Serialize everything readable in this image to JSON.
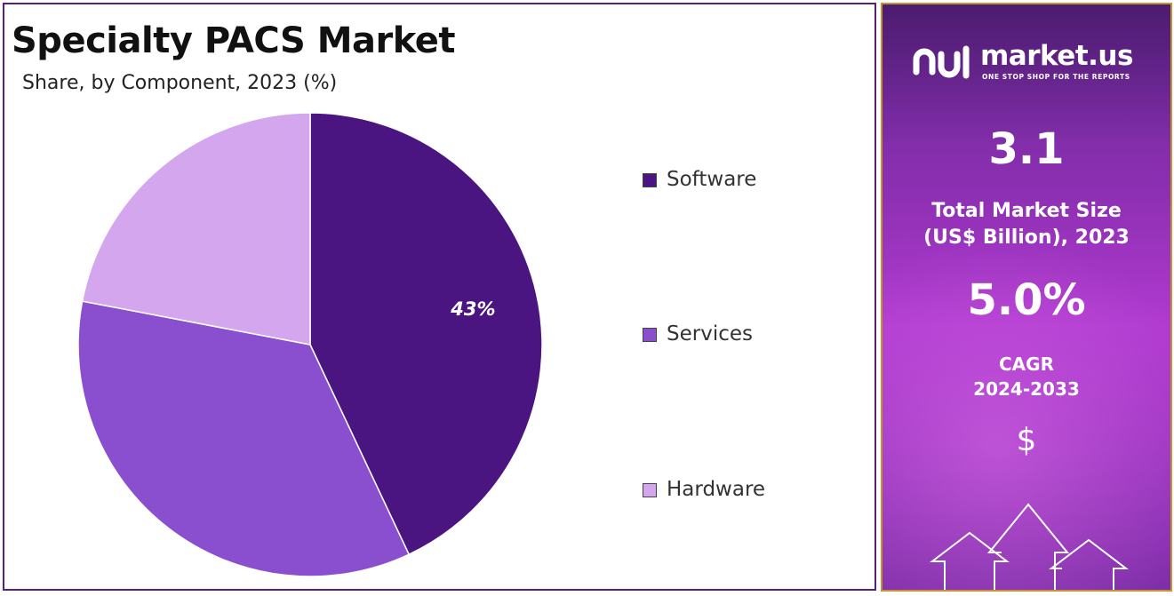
{
  "chart_data": {
    "type": "pie",
    "title": "Specialty PACS Market",
    "subtitle": "Share, by Component, 2023 (%)",
    "categories": [
      "Software",
      "Services",
      "Hardware"
    ],
    "values": [
      43,
      35,
      22
    ],
    "colors": [
      "#4a1580",
      "#8a4fce",
      "#d3a6ee"
    ],
    "data_labels": [
      "43%",
      "",
      ""
    ],
    "legend_position": "right"
  },
  "side_panel": {
    "logo_text": "market.us",
    "logo_tagline": "ONE STOP SHOP FOR THE REPORTS",
    "market_size_value": "3.1",
    "market_size_label_line1": "Total Market Size",
    "market_size_label_line2": "(US$ Billion), 2023",
    "cagr_value": "5.0%",
    "cagr_label_line1": "CAGR",
    "cagr_label_line2": "2024-2033",
    "currency_symbol": "$",
    "logo_icon": "market-us-logo-icon",
    "decor_icons": [
      "dollar-icon",
      "up-arrow-icon"
    ]
  }
}
